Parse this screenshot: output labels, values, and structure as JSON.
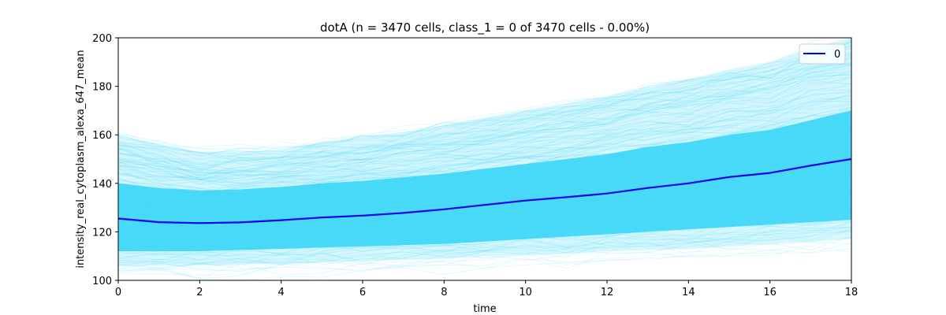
{
  "chart_data": {
    "type": "line",
    "title": "dotA (n = 3470 cells, class_1 = 0 of 3470 cells - 0.00%)",
    "xlabel": "time",
    "ylabel": "intensity_real_cytoplasm_alexa_647_mean",
    "xlim": [
      0,
      18
    ],
    "ylim": [
      100,
      200
    ],
    "xticks": [
      "0",
      "2",
      "4",
      "6",
      "8",
      "10",
      "12",
      "14",
      "16",
      "18"
    ],
    "yticks": [
      "100",
      "120",
      "140",
      "160",
      "180",
      "200"
    ],
    "grid": false,
    "legend_position": "top-right",
    "background_color": "#48daf8",
    "mean_color": "#0000ee",
    "x": [
      0,
      1,
      2,
      3,
      4,
      5,
      6,
      7,
      8,
      9,
      10,
      11,
      12,
      13,
      14,
      15,
      16,
      17,
      18
    ],
    "series": [
      {
        "name": "0",
        "values": [
          125.5,
          124.0,
          123.6,
          123.9,
          124.8,
          125.9,
          126.7,
          127.8,
          129.3,
          131.1,
          132.9,
          134.3,
          135.8,
          138.1,
          140.0,
          142.6,
          144.3,
          147.3,
          150.0
        ]
      }
    ],
    "band": {
      "lower": [
        106,
        106,
        106,
        106.5,
        107,
        107.5,
        108,
        108.5,
        109,
        110,
        110.5,
        111,
        112,
        112.5,
        113,
        114,
        115,
        116,
        117
      ],
      "core_lower": [
        112,
        112,
        112,
        112.5,
        113,
        113.5,
        114,
        114.5,
        115,
        116,
        117,
        118,
        119,
        120,
        121,
        122,
        123,
        124,
        125
      ],
      "core_upper": [
        140,
        138,
        137,
        137.5,
        138.5,
        140,
        141,
        142.5,
        144,
        146,
        148,
        150,
        152,
        155,
        157,
        160,
        162,
        166,
        170
      ],
      "upper": [
        160,
        156,
        153,
        153,
        154,
        157,
        159,
        161,
        164,
        167,
        170,
        173,
        176,
        180,
        183,
        187,
        190,
        196,
        200
      ]
    }
  }
}
